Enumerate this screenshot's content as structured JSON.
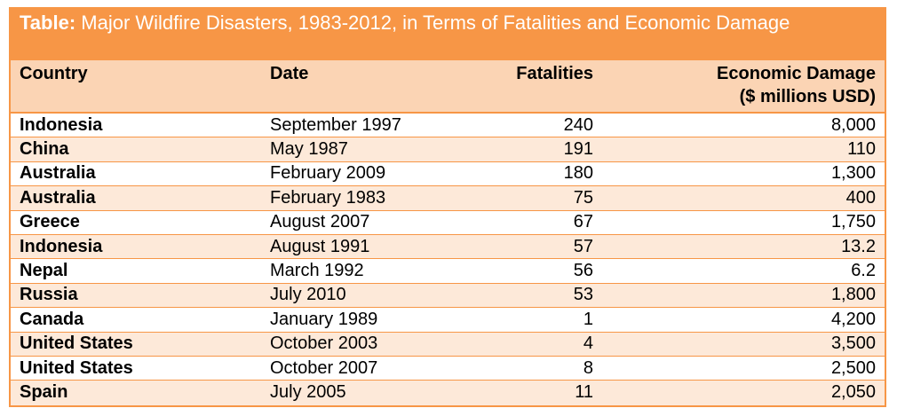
{
  "chart_data": {
    "type": "table",
    "title_prefix": "Table:",
    "title": " Major Wildfire Disasters, 1983-2012, in Terms of Fatalities and Economic Damage",
    "columns": [
      "Country",
      "Date",
      "Fatalities",
      "Economic Damage"
    ],
    "econ_header_line2": "($ millions USD)",
    "rows": [
      {
        "country": "Indonesia",
        "date": "September 1997",
        "fatalities": "240",
        "economic_damage": "8,000"
      },
      {
        "country": "China",
        "date": "May 1987",
        "fatalities": "191",
        "economic_damage": "110"
      },
      {
        "country": "Australia",
        "date": "February 2009",
        "fatalities": "180",
        "economic_damage": "1,300"
      },
      {
        "country": "Australia",
        "date": "February 1983",
        "fatalities": "75",
        "economic_damage": "400"
      },
      {
        "country": "Greece",
        "date": "August 2007",
        "fatalities": "67",
        "economic_damage": "1,750"
      },
      {
        "country": "Indonesia",
        "date": "August 1991",
        "fatalities": "57",
        "economic_damage": "13.2"
      },
      {
        "country": "Nepal",
        "date": "March 1992",
        "fatalities": "56",
        "economic_damage": "6.2"
      },
      {
        "country": "Russia",
        "date": "July 2010",
        "fatalities": "53",
        "economic_damage": "1,800"
      },
      {
        "country": "Canada",
        "date": "January 1989",
        "fatalities": "1",
        "economic_damage": "4,200"
      },
      {
        "country": "United States",
        "date": "October 2003",
        "fatalities": "4",
        "economic_damage": "3,500"
      },
      {
        "country": "United States",
        "date": "October 2007",
        "fatalities": "8",
        "economic_damage": "2,500"
      },
      {
        "country": "Spain",
        "date": "July 2005",
        "fatalities": "11",
        "economic_damage": "2,050"
      }
    ],
    "colors": {
      "accent": "#f79646",
      "header_fill": "#fbd4b4",
      "band_fill": "#fde9d9",
      "title_text": "#ffffff"
    }
  }
}
